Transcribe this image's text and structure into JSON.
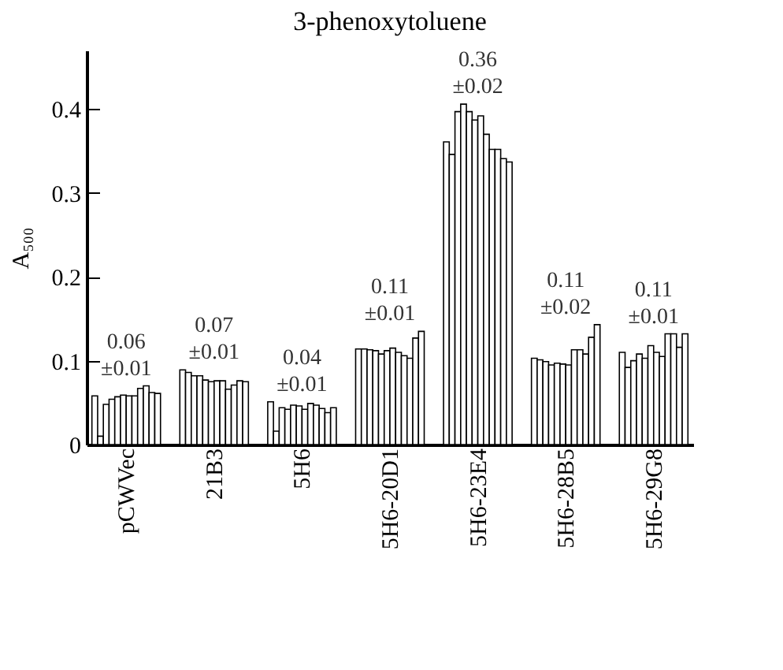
{
  "chart_data": {
    "type": "bar",
    "title": "3-phenoxytoluene",
    "ylabel": "A₅₀₀",
    "categories": [
      "pCWVec",
      "21B3",
      "5H6",
      "5H6-20D1",
      "5H6-23E4",
      "5H6-28B5",
      "5H6-29G8"
    ],
    "series": [
      {
        "color": "#ffffff",
        "values": [
          0.058,
          0.089,
          0.051,
          0.114,
          0.361,
          0.103,
          0.11
        ]
      },
      {
        "color": "#ffffff",
        "values": [
          0.01,
          0.086,
          0.016,
          0.114,
          0.346,
          0.101,
          0.092
        ]
      },
      {
        "color": "#ffffff",
        "values": [
          0.048,
          0.082,
          0.044,
          0.113,
          0.397,
          0.099,
          0.1
        ]
      },
      {
        "color": "#ffffff",
        "values": [
          0.054,
          0.082,
          0.042,
          0.112,
          0.406,
          0.095,
          0.108
        ]
      },
      {
        "color": "#ffffff",
        "values": [
          0.057,
          0.077,
          0.047,
          0.108,
          0.397,
          0.097,
          0.103
        ]
      },
      {
        "color": "#ffffff",
        "values": [
          0.059,
          0.075,
          0.046,
          0.112,
          0.387,
          0.096,
          0.118
        ]
      },
      {
        "color": "#ffffff",
        "values": [
          0.058,
          0.076,
          0.042,
          0.115,
          0.392,
          0.095,
          0.11
        ]
      },
      {
        "color": "#ffffff",
        "values": [
          0.058,
          0.076,
          0.049,
          0.11,
          0.37,
          0.113,
          0.105
        ]
      },
      {
        "color": "#ffffff",
        "values": [
          0.067,
          0.066,
          0.047,
          0.106,
          0.352,
          0.113,
          0.132
        ]
      },
      {
        "color": "#ffffff",
        "values": [
          0.07,
          0.071,
          0.043,
          0.103,
          0.352,
          0.108,
          0.132
        ]
      },
      {
        "color": "#ffffff",
        "values": [
          0.062,
          0.076,
          0.038,
          0.127,
          0.341,
          0.128,
          0.116
        ]
      },
      {
        "color": "#ffffff",
        "values": [
          0.061,
          0.075,
          0.044,
          0.135,
          0.337,
          0.143,
          0.132
        ]
      }
    ],
    "annotations": [
      "0.06\n±0.01",
      "0.07\n±0.01",
      "0.04\n±0.01",
      "0.11\n±0.01",
      "0.36\n±0.02",
      "0.11\n±0.02",
      "0.11\n±0.01"
    ],
    "ylim": [
      0,
      0.47
    ],
    "yticks": [
      0,
      0.1,
      0.2,
      0.3,
      0.4
    ],
    "grid": false
  }
}
